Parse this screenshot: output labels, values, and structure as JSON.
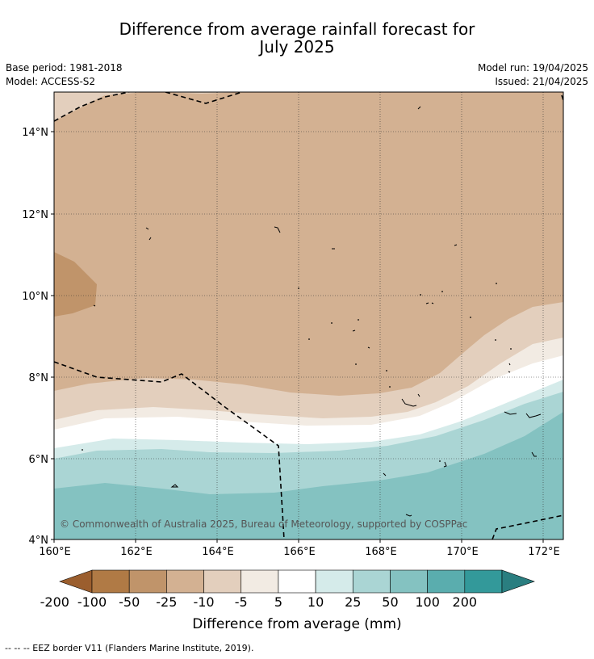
{
  "header": {
    "title_line1": "Difference from average rainfall forecast for",
    "title_line2": "July 2025",
    "base_period": "Base period: 1981-2018",
    "model": "Model: ACCESS-S2",
    "model_run": "Model run: 19/04/2025",
    "issued": "Issued: 21/04/2025"
  },
  "map": {
    "lat_ticks": [
      "14°N",
      "12°N",
      "10°N",
      "8°N",
      "6°N",
      "4°N"
    ],
    "lon_ticks": [
      "160°E",
      "162°E",
      "164°E",
      "166°E",
      "168°E",
      "170°E",
      "172°E"
    ],
    "copyright": "© Commonwealth of Australia 2025, Bureau of Meteorology, supported by COSPPac",
    "border_style": "dashed black"
  },
  "colorbar": {
    "labels": [
      "-200",
      "-100",
      "-50",
      "-25",
      "-10",
      "-5",
      "5",
      "10",
      "25",
      "50",
      "100",
      "200"
    ],
    "colors": [
      "#9b5e2e",
      "#b07a45",
      "#c0946a",
      "#d3b192",
      "#e3cfbd",
      "#f2ebe3",
      "#ffffff",
      "#d5ebea",
      "#aad5d4",
      "#84c2c1",
      "#5aadae",
      "#33999a",
      "#2a7e80"
    ],
    "title": "Difference from average (mm)"
  },
  "footnote": "-- -- -- EEZ border V11 (Flanders Marine Institute, 2019)."
}
